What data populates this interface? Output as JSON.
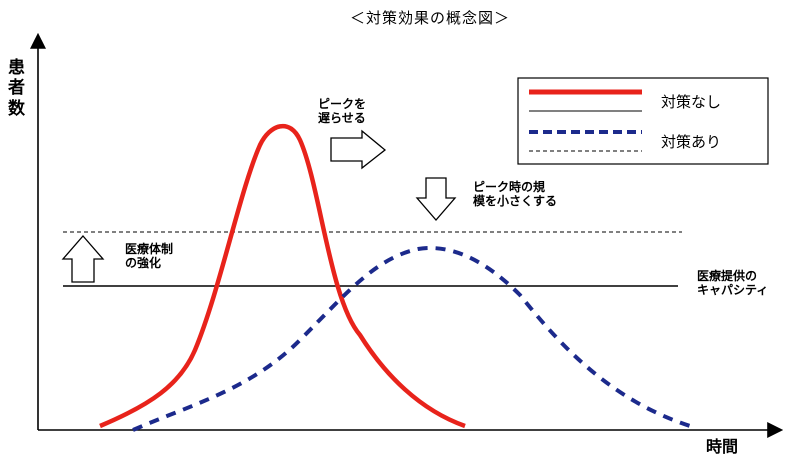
{
  "title": "＜対策効果の概念図＞",
  "y_axis_label": "患者数",
  "x_axis_label": "時間",
  "annotations": {
    "delay_peak": [
      "ピークを",
      "遅らせる"
    ],
    "reduce_peak": [
      "ピーク時の規",
      "模を小さくする"
    ],
    "strengthen": [
      "医療体制",
      "の強化"
    ],
    "capacity": [
      "医療提供の",
      "キャパシティ"
    ]
  },
  "legend": [
    {
      "label": "対策なし",
      "color": "#e8231b",
      "style": "solid"
    },
    {
      "label": "対策あり",
      "color": "#1c2a8c",
      "style": "dashed"
    }
  ],
  "colors": {
    "no_measures": "#e8231b",
    "with_measures": "#1c2a8c",
    "axis": "#000000"
  }
}
